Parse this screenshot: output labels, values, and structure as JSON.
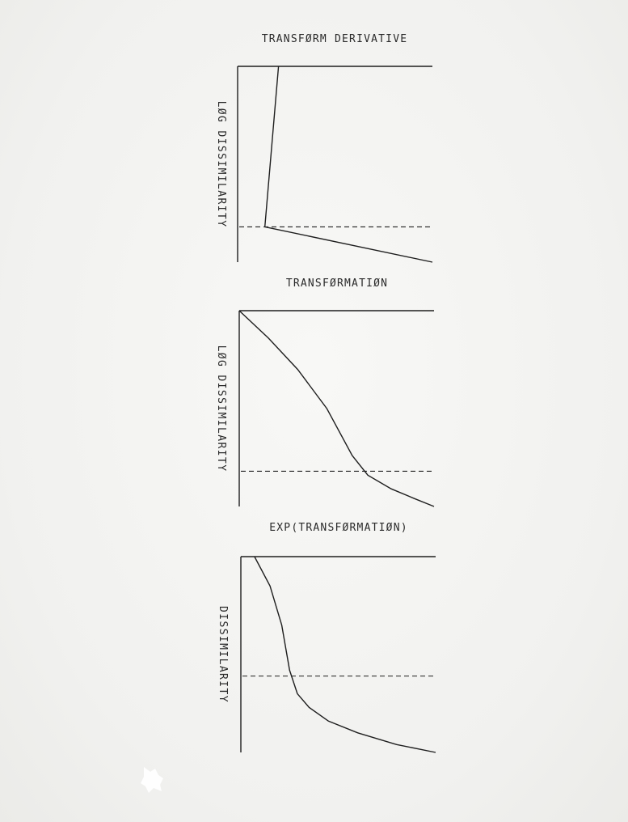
{
  "chart_data": [
    {
      "type": "line",
      "title": "TRANSFØRM DERIVATIVE",
      "ylabel": "LØG DISSIMILARITY",
      "xlabel": "",
      "ylim": [
        0,
        1
      ],
      "xlim": [
        0,
        1
      ],
      "grid": false,
      "threshold": 0.18,
      "series": [
        {
          "x": [
            0.21,
            0.14,
            1.0
          ],
          "y": [
            1.0,
            0.18,
            0.0
          ]
        }
      ]
    },
    {
      "type": "line",
      "title": "TRANSFØRMATIØN",
      "ylabel": "LØG DISSIMILARITY",
      "xlabel": "",
      "ylim": [
        0,
        1
      ],
      "xlim": [
        0,
        1
      ],
      "grid": false,
      "threshold": 0.18,
      "series": [
        {
          "x": [
            0.0,
            0.15,
            0.3,
            0.45,
            0.58,
            0.66,
            0.78,
            0.9,
            1.0
          ],
          "y": [
            1.0,
            0.86,
            0.7,
            0.5,
            0.26,
            0.16,
            0.09,
            0.04,
            0.0
          ]
        }
      ]
    },
    {
      "type": "line",
      "title": "EXP(TRANSFØRMATIØN)",
      "ylabel": "DISSIMILARITY",
      "xlabel": "",
      "ylim": [
        0,
        1
      ],
      "xlim": [
        0,
        1
      ],
      "grid": false,
      "threshold": 0.39,
      "series": [
        {
          "x": [
            0.07,
            0.15,
            0.21,
            0.25,
            0.29,
            0.35,
            0.45,
            0.6,
            0.8,
            1.0
          ],
          "y": [
            1.0,
            0.85,
            0.65,
            0.42,
            0.3,
            0.23,
            0.16,
            0.1,
            0.04,
            0.0
          ]
        }
      ]
    }
  ]
}
